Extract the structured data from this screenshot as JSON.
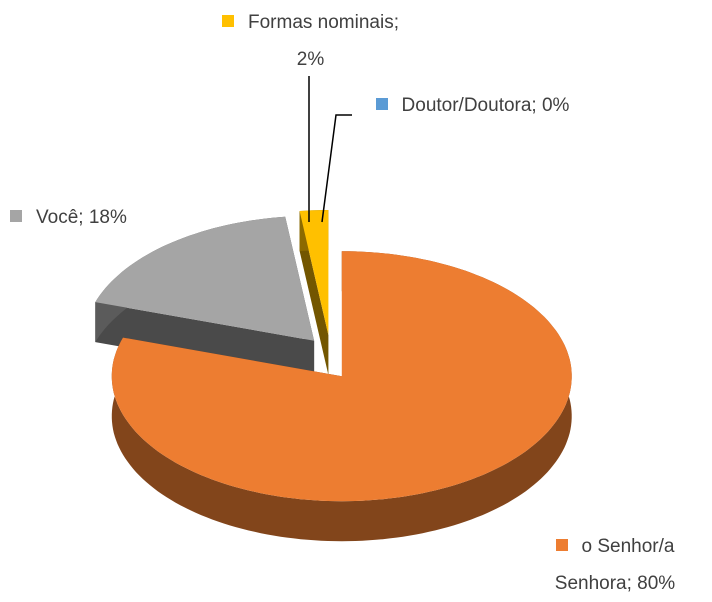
{
  "chart_data": {
    "type": "pie",
    "three_d": true,
    "labels": [
      "o Senhor/a Senhora; 80%",
      "Você; 18%",
      "Formas nominais; 2%",
      "Doutor/Doutora; 0%"
    ],
    "values": [
      80,
      18,
      2,
      0
    ],
    "colors": [
      "#ED7D31",
      "#A5A5A5",
      "#FFC000",
      "#5B9BD5"
    ]
  }
}
